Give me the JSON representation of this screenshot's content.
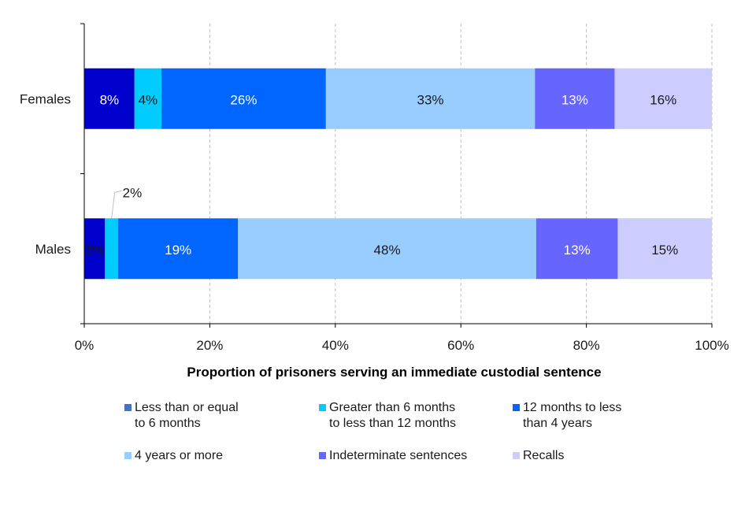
{
  "chart_data": {
    "type": "bar",
    "orientation": "horizontal-stacked-100",
    "categories": [
      "Females",
      "Males"
    ],
    "xlabel": "Proportion of prisoners serving an immediate custodial sentence",
    "xlim": [
      0,
      100
    ],
    "xticks": [
      "0%",
      "20%",
      "40%",
      "60%",
      "80%",
      "100%"
    ],
    "grid": "vertical dashed",
    "legend_position": "bottom",
    "series": [
      {
        "name": "Less than or equal to 6 months",
        "legend_lines": [
          "Less than or equal",
          "to 6 months"
        ],
        "color": "#0000CC",
        "legend_color": "#4472C4",
        "values": [
          8.0,
          3.3
        ],
        "labels": [
          "8%",
          "3%"
        ],
        "label_colors": [
          "#ffffff",
          "#1a1a1a"
        ]
      },
      {
        "name": "Greater than 6 months to less than 12 months",
        "legend_lines": [
          "Greater than 6 months",
          "to less than 12 months"
        ],
        "color": "#00CCFF",
        "legend_color": "#00CCFF",
        "values": [
          4.3,
          2.1
        ],
        "labels": [
          "4%",
          "2%"
        ],
        "label_colors": [
          "#1a1a1a",
          "#1a1a1a"
        ]
      },
      {
        "name": "12 months to less than 4 years",
        "legend_lines": [
          "12 months to less",
          "than 4 years"
        ],
        "color": "#0066FF",
        "legend_color": "#0066FF",
        "values": [
          26.2,
          19.1
        ],
        "labels": [
          "26%",
          "19%"
        ],
        "label_colors": [
          "#ffffff",
          "#ffffff"
        ]
      },
      {
        "name": "4 years or more",
        "legend_lines": [
          "4 years or more"
        ],
        "color": "#99CCFF",
        "legend_color": "#99CCFF",
        "values": [
          33.3,
          47.5
        ],
        "labels": [
          "33%",
          "48%"
        ],
        "label_colors": [
          "#1a1a1a",
          "#1a1a1a"
        ]
      },
      {
        "name": "Indeterminate sentences",
        "legend_lines": [
          "Indeterminate sentences"
        ],
        "color": "#6666FF",
        "legend_color": "#6666FF",
        "values": [
          12.7,
          13.0
        ],
        "labels": [
          "13%",
          "13%"
        ],
        "label_colors": [
          "#ffffff",
          "#ffffff"
        ]
      },
      {
        "name": "Recalls",
        "legend_lines": [
          "Recalls"
        ],
        "color": "#CCCCFF",
        "legend_color": "#CCCCFF",
        "values": [
          15.5,
          15.0
        ],
        "labels": [
          "16%",
          "15%"
        ],
        "label_colors": [
          "#1a1a1a",
          "#1a1a1a"
        ]
      }
    ]
  }
}
